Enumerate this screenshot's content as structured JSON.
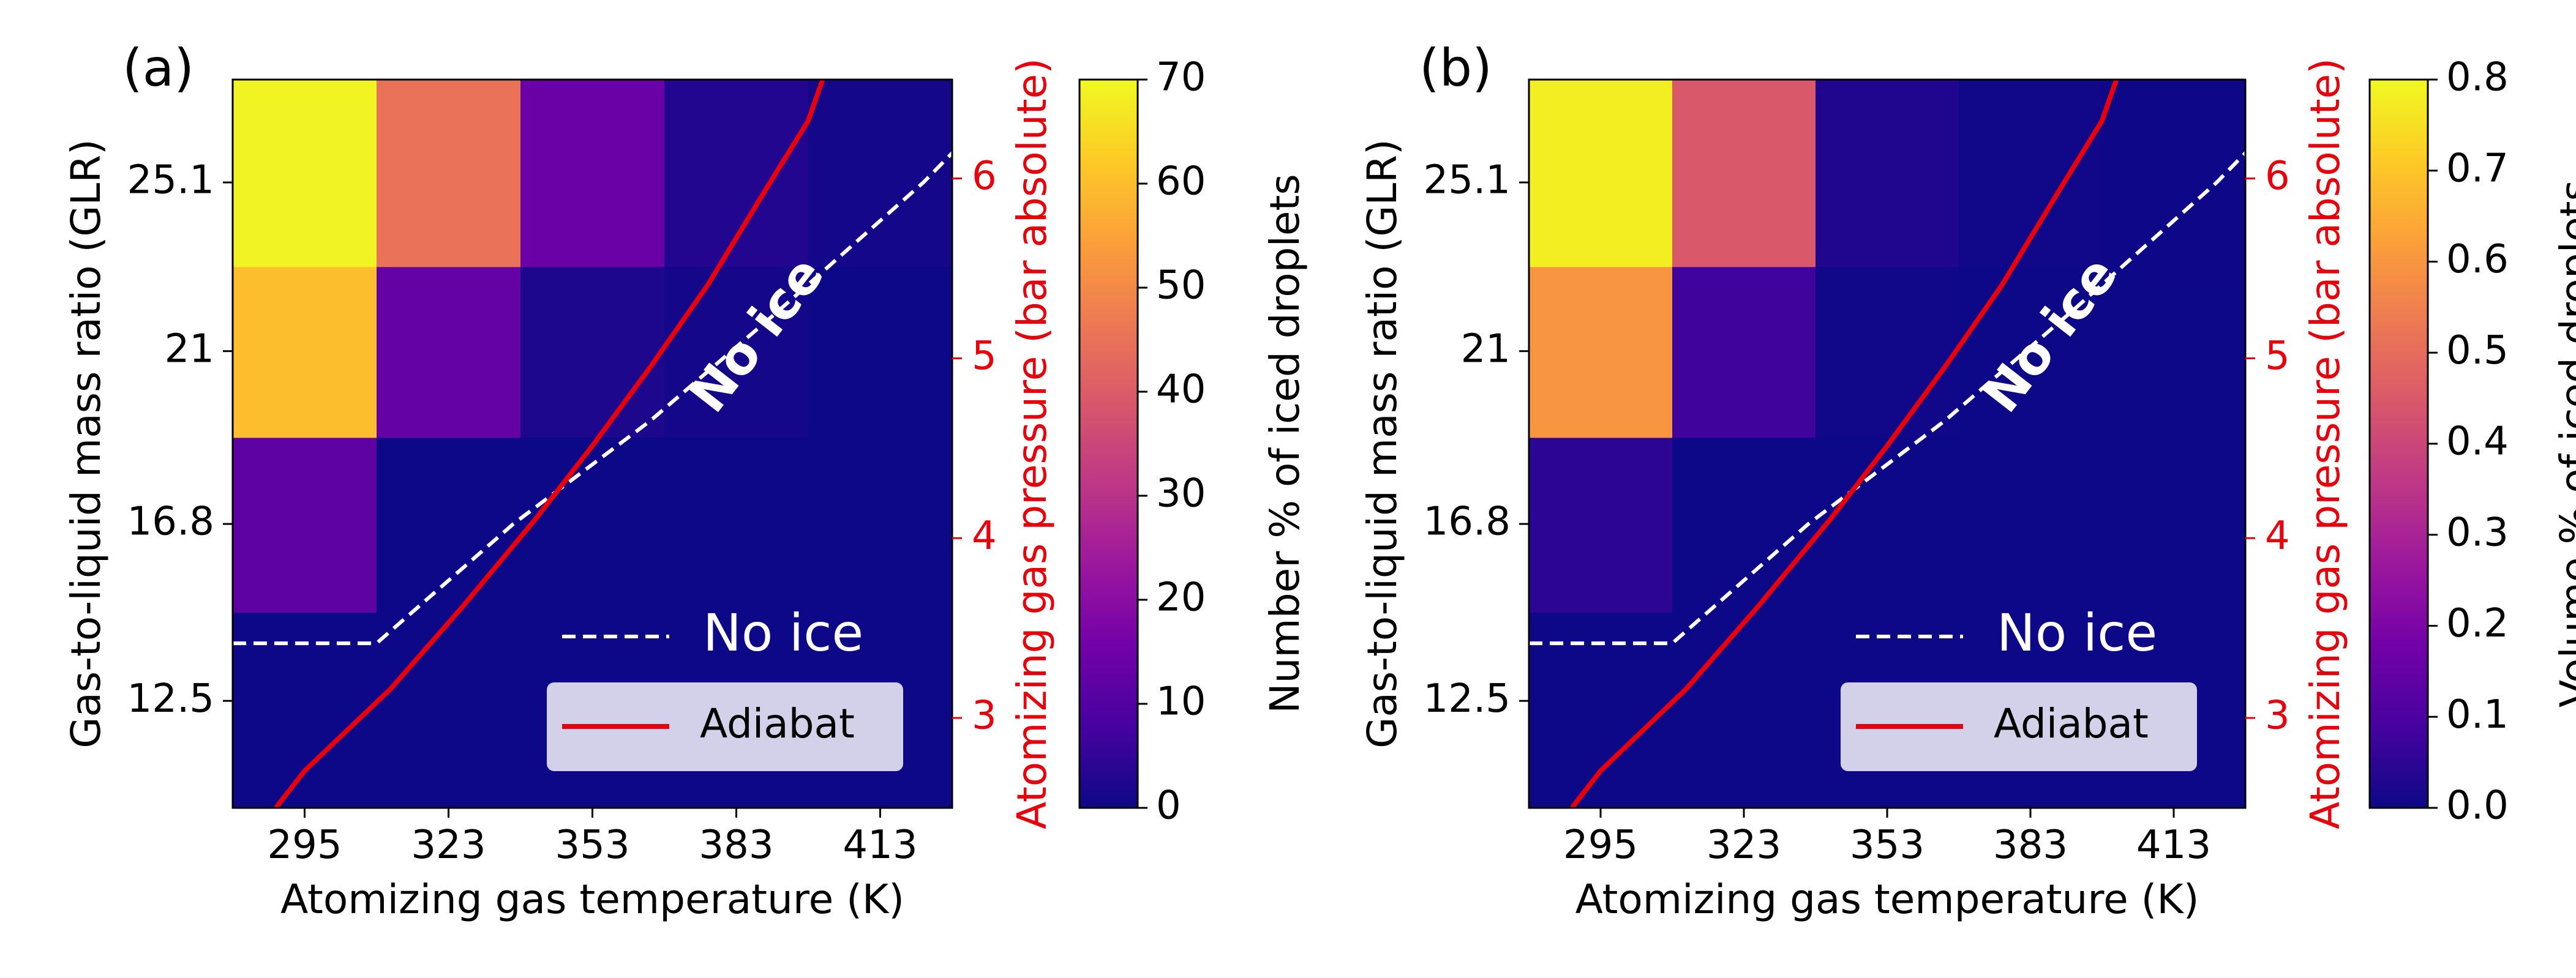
{
  "colors": {
    "background": "#ffffff",
    "frame": "#000000",
    "adiabat": "#e8000b",
    "no_ice_line": "#ffffff",
    "no_ice_text": "#ffffff",
    "right_axis": "#e8000b",
    "legend_bg": "#d3d1e9",
    "plasma_colormap": [
      "#0d0887",
      "#46039f",
      "#7201a8",
      "#9c179e",
      "#bd3786",
      "#d8576b",
      "#ed7953",
      "#fb9f3a",
      "#fdca26",
      "#f0f921"
    ]
  },
  "chart_data": [
    {
      "panel": "(a)",
      "type": "heatmap",
      "xlabel": "Atomizing gas temperature (K)",
      "ylabel": "Gas-to-liquid mass ratio (GLR)",
      "y2label": "Atomizing gas pressure (bar absolute)",
      "x_categories": [
        "295",
        "323",
        "353",
        "383",
        "413"
      ],
      "y_categories": [
        "12.5",
        "16.8",
        "21",
        "25.1"
      ],
      "y2_ticks": [
        "3",
        "4",
        "5",
        "6"
      ],
      "values": [
        [
          0,
          0,
          0,
          0,
          0
        ],
        [
          12,
          0,
          0,
          0,
          0
        ],
        [
          60,
          13,
          2,
          1,
          0
        ],
        [
          69,
          45,
          14,
          3,
          1
        ]
      ],
      "colorbar": {
        "label": "Number % of iced droplets",
        "min": 0,
        "max": 70,
        "ticks": [
          "0",
          "10",
          "20",
          "30",
          "40",
          "50",
          "60",
          "70"
        ]
      },
      "no_ice_text": "No ice",
      "legend": [
        "No ice",
        "Adiabat"
      ],
      "no_ice_boundary": [
        [
          -0.5,
          13.9
        ],
        [
          0.5,
          13.9
        ],
        [
          1.45,
          16.8
        ],
        [
          2.4,
          19.3
        ],
        [
          3.3,
          22.0
        ],
        [
          4.3,
          25.1
        ],
        [
          5.0,
          27.6
        ]
      ],
      "adiabat": [
        [
          -0.2,
          9.9
        ],
        [
          0.0,
          10.8
        ],
        [
          0.6,
          12.8
        ],
        [
          1.1,
          14.8
        ],
        [
          1.6,
          16.9
        ],
        [
          2.0,
          18.7
        ],
        [
          2.4,
          20.6
        ],
        [
          2.8,
          22.6
        ],
        [
          3.2,
          24.9
        ],
        [
          3.5,
          26.6
        ],
        [
          3.6,
          27.6
        ]
      ],
      "x_range": [
        -0.5,
        4.5
      ],
      "y_range": [
        9.9,
        27.6
      ],
      "y2_range": [
        2.5,
        6.55
      ]
    },
    {
      "panel": "(b)",
      "type": "heatmap",
      "xlabel": "Atomizing gas temperature (K)",
      "ylabel": "Gas-to-liquid mass ratio (GLR)",
      "y2label": "Atomizing gas pressure (bar absolute)",
      "x_categories": [
        "295",
        "323",
        "353",
        "383",
        "413"
      ],
      "y_categories": [
        "12.5",
        "16.8",
        "21",
        "25.1"
      ],
      "y2_ticks": [
        "3",
        "4",
        "5",
        "6"
      ],
      "values": [
        [
          0,
          0,
          0,
          0,
          0
        ],
        [
          0.05,
          0,
          0,
          0,
          0
        ],
        [
          0.6,
          0.08,
          0.005,
          0,
          0
        ],
        [
          0.78,
          0.45,
          0.03,
          0.005,
          0.002
        ]
      ],
      "colorbar": {
        "label": "Volume % of iced droplets",
        "min": 0,
        "max": 0.8,
        "ticks": [
          "0.0",
          "0.1",
          "0.2",
          "0.3",
          "0.4",
          "0.5",
          "0.6",
          "0.7",
          "0.8"
        ]
      },
      "no_ice_text": "No ice",
      "legend": [
        "No ice",
        "Adiabat"
      ],
      "no_ice_boundary": [
        [
          -0.5,
          13.9
        ],
        [
          0.5,
          13.9
        ],
        [
          1.45,
          16.8
        ],
        [
          2.4,
          19.3
        ],
        [
          3.3,
          22.0
        ],
        [
          4.3,
          25.1
        ],
        [
          5.0,
          27.6
        ]
      ],
      "adiabat": [
        [
          -0.2,
          9.9
        ],
        [
          0.0,
          10.8
        ],
        [
          0.6,
          12.8
        ],
        [
          1.1,
          14.8
        ],
        [
          1.6,
          16.9
        ],
        [
          2.0,
          18.7
        ],
        [
          2.4,
          20.6
        ],
        [
          2.8,
          22.6
        ],
        [
          3.2,
          24.9
        ],
        [
          3.5,
          26.6
        ],
        [
          3.6,
          27.6
        ]
      ],
      "x_range": [
        -0.5,
        4.5
      ],
      "y_range": [
        9.9,
        27.6
      ],
      "y2_range": [
        2.5,
        6.55
      ]
    }
  ]
}
